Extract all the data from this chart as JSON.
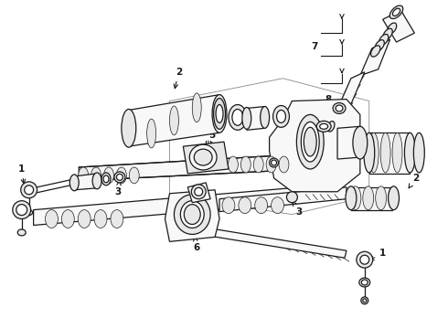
{
  "bg_color": "#ffffff",
  "line_color": "#1a1a1a",
  "figsize": [
    4.9,
    3.6
  ],
  "dpi": 100,
  "font_size": 7.5,
  "lw_main": 0.9,
  "lw_thin": 0.5,
  "fc_part": "#f8f8f8",
  "fc_dark": "#e8e8e8",
  "fc_white": "#ffffff"
}
